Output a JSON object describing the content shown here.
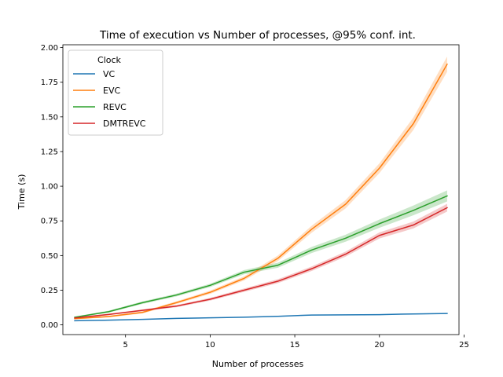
{
  "chart_data": {
    "type": "line",
    "title": "Time of execution vs Number of processes, @95% conf. int.",
    "xlabel": "Number of processes",
    "ylabel": "Time (s)",
    "xlim": [
      1.3,
      24.7
    ],
    "ylim": [
      -0.07,
      2.02
    ],
    "x_ticks": [
      5,
      10,
      15,
      20,
      25
    ],
    "y_ticks": [
      0.0,
      0.25,
      0.5,
      0.75,
      1.0,
      1.25,
      1.5,
      1.75,
      2.0
    ],
    "y_tick_labels": [
      "0.00",
      "0.25",
      "0.50",
      "0.75",
      "1.00",
      "1.25",
      "1.50",
      "1.75",
      "2.00"
    ],
    "grid": false,
    "legend": {
      "title": "Clock",
      "placement": "upper-left"
    },
    "x": [
      2,
      4,
      6,
      8,
      10,
      12,
      14,
      16,
      18,
      20,
      22,
      24
    ],
    "series": [
      {
        "name": "VC",
        "color": "#1f77b4",
        "values": [
          0.03,
          0.034,
          0.04,
          0.047,
          0.051,
          0.055,
          0.062,
          0.071,
          0.072,
          0.074,
          0.079,
          0.082
        ],
        "ci_halfwidth": [
          0.002,
          0.002,
          0.002,
          0.002,
          0.002,
          0.002,
          0.003,
          0.003,
          0.003,
          0.003,
          0.003,
          0.003
        ]
      },
      {
        "name": "EVC",
        "color": "#ff7f0e",
        "values": [
          0.045,
          0.06,
          0.09,
          0.16,
          0.235,
          0.335,
          0.48,
          0.69,
          0.87,
          1.13,
          1.45,
          1.88
        ],
        "ci_halfwidth": [
          0.005,
          0.006,
          0.008,
          0.01,
          0.012,
          0.015,
          0.02,
          0.025,
          0.03,
          0.035,
          0.045,
          0.055
        ]
      },
      {
        "name": "REVC",
        "color": "#2ca02c",
        "values": [
          0.055,
          0.095,
          0.16,
          0.215,
          0.285,
          0.38,
          0.43,
          0.54,
          0.625,
          0.73,
          0.825,
          0.93
        ],
        "ci_halfwidth": [
          0.005,
          0.007,
          0.009,
          0.01,
          0.012,
          0.015,
          0.018,
          0.022,
          0.025,
          0.03,
          0.035,
          0.04
        ]
      },
      {
        "name": "DMTREVC",
        "color": "#d62728",
        "values": [
          0.05,
          0.075,
          0.105,
          0.135,
          0.185,
          0.25,
          0.315,
          0.405,
          0.51,
          0.645,
          0.72,
          0.845
        ],
        "ci_halfwidth": [
          0.004,
          0.005,
          0.006,
          0.008,
          0.01,
          0.012,
          0.014,
          0.016,
          0.018,
          0.022,
          0.025,
          0.028
        ]
      }
    ]
  }
}
